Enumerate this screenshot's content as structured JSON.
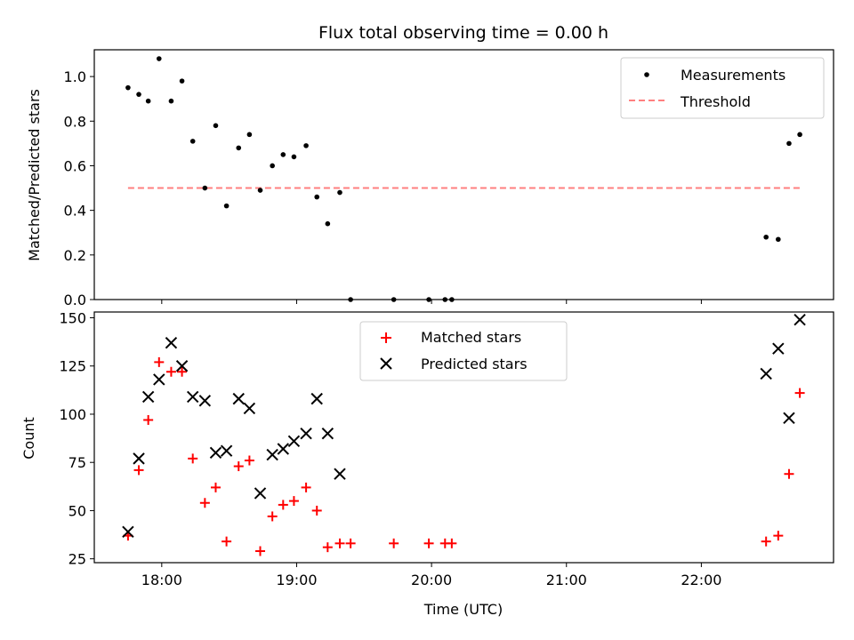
{
  "chart_data": [
    {
      "type": "scatter",
      "title": "Flux total observing time = 0.00 h",
      "xlabel": "",
      "ylabel": "Matched/Predicted stars",
      "xlim": [
        17.5,
        22.98
      ],
      "ylim": [
        0,
        1.12
      ],
      "yticks": [
        0.0,
        0.2,
        0.4,
        0.6,
        0.8,
        1.0
      ],
      "ytick_labels": [
        "0.0",
        "0.2",
        "0.4",
        "0.6",
        "0.8",
        "1.0"
      ],
      "legend_position": "top-right",
      "series": [
        {
          "name": "Measurements",
          "kind": "dot",
          "color": "#000000",
          "x": [
            17.75,
            17.83,
            17.9,
            17.98,
            18.07,
            18.15,
            18.23,
            18.32,
            18.4,
            18.48,
            18.57,
            18.65,
            18.73,
            18.82,
            18.9,
            18.98,
            19.07,
            19.15,
            19.23,
            19.32,
            19.4,
            19.72,
            19.98,
            20.1,
            20.15,
            22.48,
            22.57,
            22.65,
            22.73
          ],
          "y": [
            0.95,
            0.92,
            0.89,
            1.08,
            0.89,
            0.98,
            0.71,
            0.5,
            0.78,
            0.42,
            0.68,
            0.74,
            0.49,
            0.6,
            0.65,
            0.64,
            0.69,
            0.46,
            0.34,
            0.48,
            0.0,
            0.0,
            0.0,
            0.0,
            0.0,
            0.28,
            0.27,
            0.7,
            0.74
          ]
        },
        {
          "name": "Threshold",
          "kind": "dashed-line",
          "color": "#ff7f7f",
          "x": [
            17.75,
            22.73
          ],
          "y": [
            0.5,
            0.5
          ]
        }
      ]
    },
    {
      "type": "scatter",
      "title": "",
      "xlabel": "Time (UTC)",
      "ylabel": "Count",
      "xlim": [
        17.5,
        22.98
      ],
      "ylim": [
        23,
        153
      ],
      "xticks": [
        18,
        19,
        20,
        21,
        22
      ],
      "xtick_labels": [
        "18:00",
        "19:00",
        "20:00",
        "21:00",
        "22:00"
      ],
      "yticks": [
        25,
        50,
        75,
        100,
        125,
        150
      ],
      "ytick_labels": [
        "25",
        "50",
        "75",
        "100",
        "125",
        "150"
      ],
      "legend_position": "top-center",
      "series": [
        {
          "name": "Matched stars",
          "kind": "plus",
          "color": "#ff0000",
          "x": [
            17.75,
            17.83,
            17.9,
            17.98,
            18.07,
            18.15,
            18.23,
            18.32,
            18.4,
            18.48,
            18.57,
            18.65,
            18.73,
            18.82,
            18.9,
            18.98,
            19.07,
            19.15,
            19.23,
            19.32,
            19.4,
            19.72,
            19.98,
            20.1,
            20.15,
            22.48,
            22.57,
            22.65,
            22.73
          ],
          "y": [
            37,
            71,
            97,
            127,
            122,
            122,
            77,
            54,
            62,
            34,
            73,
            76,
            29,
            47,
            53,
            55,
            62,
            50,
            31,
            33,
            33,
            33,
            33,
            33,
            33,
            34,
            37,
            69,
            111
          ]
        },
        {
          "name": "Predicted stars",
          "kind": "cross",
          "color": "#000000",
          "x": [
            17.75,
            17.83,
            17.9,
            17.98,
            18.07,
            18.15,
            18.23,
            18.32,
            18.4,
            18.48,
            18.57,
            18.65,
            18.73,
            18.82,
            18.9,
            18.98,
            19.07,
            19.15,
            19.23,
            19.32,
            22.48,
            22.57,
            22.65,
            22.73
          ],
          "y": [
            39,
            77,
            109,
            118,
            137,
            125,
            109,
            107,
            80,
            81,
            108,
            103,
            59,
            79,
            82,
            86,
            90,
            108,
            90,
            69,
            121,
            134,
            98,
            149
          ]
        }
      ]
    }
  ]
}
